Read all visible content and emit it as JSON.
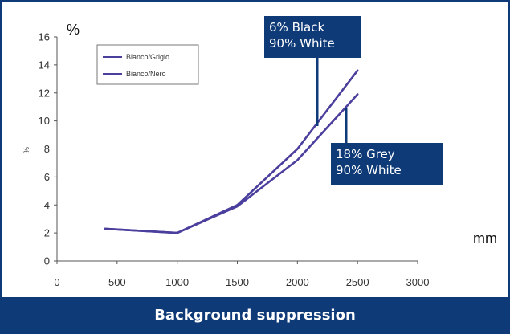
{
  "caption": "Background suppression",
  "labels": {
    "y_unit": "%",
    "x_unit": "mm",
    "y_axis_small": "%"
  },
  "callouts": [
    {
      "line1": "6% Black",
      "line2": "90% White"
    },
    {
      "line1": "18% Grey",
      "line2": "90% White"
    }
  ],
  "colors": {
    "brand": "#0e3a78",
    "series": "#4b3f9e",
    "axis": "#555555"
  },
  "chart_data": {
    "type": "line",
    "title": "",
    "xlabel": "mm",
    "ylabel": "%",
    "xlim": [
      0,
      3000
    ],
    "ylim": [
      0,
      16
    ],
    "x_ticks": [
      0,
      500,
      1000,
      1500,
      2000,
      2500,
      3000
    ],
    "y_ticks": [
      0,
      2,
      4,
      6,
      8,
      10,
      12,
      14,
      16
    ],
    "grid": false,
    "legend_position": "top-left",
    "series": [
      {
        "name": "Bianco/Grigio",
        "x": [
          400,
          1000,
          1500,
          2000,
          2500
        ],
        "y": [
          2.3,
          2.0,
          3.9,
          7.2,
          11.9
        ]
      },
      {
        "name": "Bianco/Nero",
        "x": [
          400,
          1000,
          1500,
          2000,
          2500
        ],
        "y": [
          2.3,
          2.0,
          4.0,
          8.0,
          13.6
        ]
      }
    ]
  }
}
